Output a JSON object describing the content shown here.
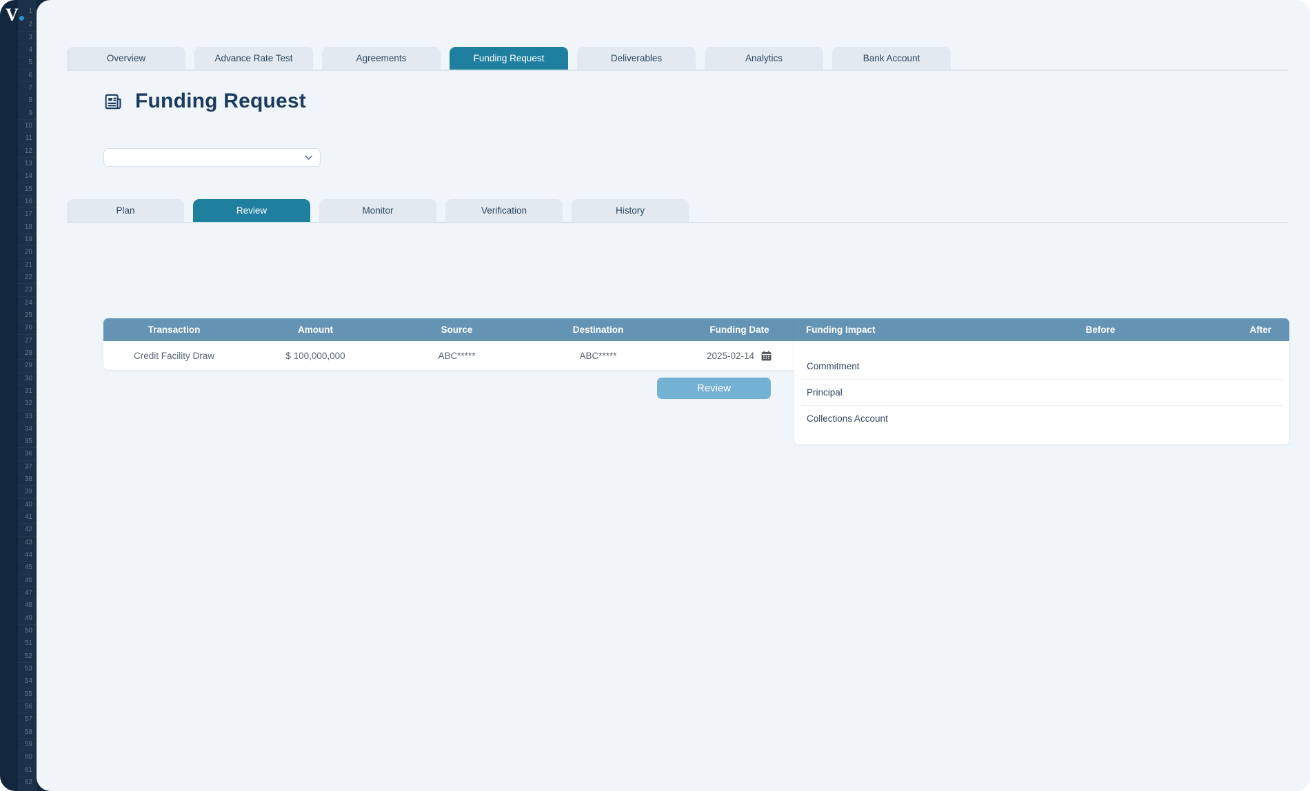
{
  "app": {
    "logo_text": "V"
  },
  "sidebar": {
    "line_numbers": {
      "start": 1,
      "end": 62
    }
  },
  "nav_tabs": {
    "items": [
      {
        "label": "Overview",
        "active": false
      },
      {
        "label": "Advance Rate Test",
        "active": false
      },
      {
        "label": "Agreements",
        "active": false
      },
      {
        "label": "Funding Request",
        "active": true
      },
      {
        "label": "Deliverables",
        "active": false
      },
      {
        "label": "Analytics",
        "active": false
      },
      {
        "label": "Bank Account",
        "active": false
      }
    ]
  },
  "page": {
    "title": "Funding Request"
  },
  "filter_select": {
    "value": ""
  },
  "sub_tabs": {
    "items": [
      {
        "label": "Plan",
        "active": false
      },
      {
        "label": "Review",
        "active": true
      },
      {
        "label": "Monitor",
        "active": false
      },
      {
        "label": "Verification",
        "active": false
      },
      {
        "label": "History",
        "active": false
      }
    ]
  },
  "transactions": {
    "columns": [
      "Transaction",
      "Amount",
      "Source",
      "Destination",
      "Funding Date"
    ],
    "rows": [
      {
        "transaction": "Credit Facility Draw",
        "amount": "$ 100,000,000",
        "source": "ABC*****",
        "destination": "ABC*****",
        "funding_date": "2025-02-14"
      }
    ],
    "review_button_label": "Review"
  },
  "funding_impact": {
    "title": "Funding Impact",
    "columns": [
      "Before",
      "After"
    ],
    "rows": [
      {
        "label": "Commitment",
        "before": "",
        "after": ""
      },
      {
        "label": "Principal",
        "before": "",
        "after": ""
      },
      {
        "label": "Collections Account",
        "before": "",
        "after": ""
      }
    ]
  },
  "colors": {
    "sidebar": "#12273E",
    "logo_dot": "#2596D1",
    "active_tab": "#1F7F9F",
    "table_header": "#6493B4",
    "review_button": "#74B2D3"
  }
}
